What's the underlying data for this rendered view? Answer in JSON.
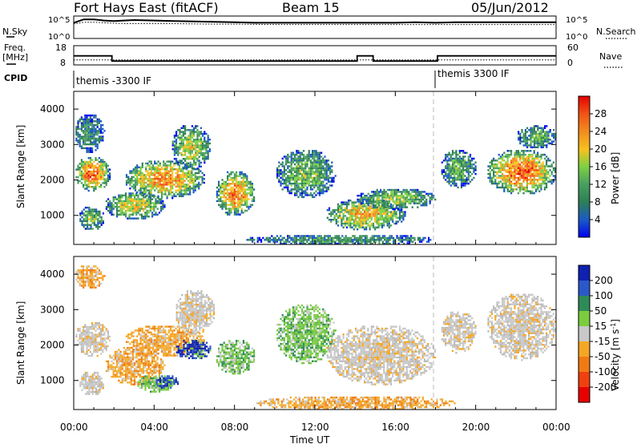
{
  "header": {
    "station": "Fort Hays East (fitACF)",
    "beam": "Beam 15",
    "date": "05/Jun/2012"
  },
  "noise_panel": {
    "left_label": "N.Sky",
    "right_label": "N.Search",
    "left_ticks": [
      "10^5",
      "10^0"
    ],
    "right_ticks": [
      "10^5",
      "10^0"
    ]
  },
  "freq_panel": {
    "left_label_1": "Freq.",
    "left_label_2": "[MHz]",
    "right_label": "Nave",
    "left_ticks": [
      "18",
      "8"
    ],
    "right_ticks": [
      "60",
      "0"
    ]
  },
  "cpid": {
    "label": "CPID",
    "segments": [
      {
        "start_hour": 0,
        "text": "themis -3300 IF"
      },
      {
        "start_hour": 18,
        "text": "themis 3300 IF"
      }
    ]
  },
  "time_axis": {
    "title": "Time UT",
    "ticks": [
      "00:00",
      "04:00",
      "08:00",
      "12:00",
      "16:00",
      "20:00",
      "00:00"
    ],
    "range_hours": [
      0,
      24
    ]
  },
  "chart_data": [
    {
      "type": "line",
      "panel": "noise",
      "x_hours": [
        0,
        0.5,
        1,
        1.5,
        2,
        2.5,
        3,
        4,
        5,
        6,
        7,
        8,
        9,
        10,
        11,
        12,
        13,
        14,
        15,
        16,
        17,
        18,
        19,
        20,
        21,
        22,
        23,
        24
      ],
      "series": [
        {
          "name": "N.Sky",
          "style": "solid",
          "values": [
            0.7,
            0.85,
            0.85,
            0.8,
            0.78,
            0.8,
            0.82,
            0.8,
            0.78,
            0.76,
            0.74,
            0.72,
            0.7,
            0.7,
            0.7,
            0.7,
            0.7,
            0.7,
            0.7,
            0.7,
            0.72,
            0.7,
            0.72,
            0.72,
            0.72,
            0.72,
            0.72,
            0.72
          ]
        },
        {
          "name": "N.Search",
          "style": "dotted",
          "values": [
            0.65,
            0.72,
            0.72,
            0.7,
            0.68,
            0.66,
            0.66,
            0.66,
            0.66,
            0.65,
            0.64,
            0.64,
            0.63,
            0.62,
            0.62,
            0.62,
            0.62,
            0.62,
            0.62,
            0.62,
            0.62,
            0.62,
            0.62,
            0.62,
            0.62,
            0.62,
            0.62,
            0.62
          ]
        }
      ]
    },
    {
      "type": "line",
      "panel": "frequency",
      "x_hours": [
        0,
        1.9,
        1.9,
        14.1,
        14.1,
        14.9,
        14.9,
        18.1,
        18.1,
        24
      ],
      "series": [
        {
          "name": "Freq.",
          "style": "solid",
          "values": [
            12.7,
            12.7,
            10.0,
            10.0,
            12.7,
            12.7,
            10.0,
            10.0,
            12.7,
            12.7
          ]
        },
        {
          "name": "Nave",
          "style": "dotted",
          "values": [
            10.6,
            10.6,
            10.6,
            10.6,
            10.6,
            10.6,
            10.6,
            10.6,
            10.6,
            10.6
          ]
        }
      ]
    },
    {
      "type": "heatmap",
      "panel": "power",
      "ylabel": "Slant Range [km]",
      "ylim": [
        180,
        4500
      ],
      "yticks": [
        1000,
        2000,
        3000,
        4000
      ],
      "colorbar": {
        "title": "Power [dB]",
        "range": [
          0,
          32
        ],
        "ticks": [
          "4",
          "8",
          "12",
          "16",
          "20",
          "24",
          "28"
        ],
        "colors": [
          "#0000f0",
          "#1a58c8",
          "#2d7f55",
          "#4aa060",
          "#7dd042",
          "#f6c21e",
          "#f28c1e",
          "#f05014",
          "#e60000"
        ]
      },
      "echo_regions": [
        {
          "t0": 0.0,
          "t1": 1.8,
          "r0": 1700,
          "r1": 2700,
          "intensity": 0.85
        },
        {
          "t0": 0.0,
          "t1": 1.5,
          "r0": 2800,
          "r1": 3900,
          "intensity": 0.3
        },
        {
          "t0": 0.2,
          "t1": 1.5,
          "r0": 600,
          "r1": 1300,
          "intensity": 0.45
        },
        {
          "t0": 1.5,
          "t1": 4.5,
          "r0": 900,
          "r1": 1700,
          "intensity": 0.6
        },
        {
          "t0": 2.5,
          "t1": 6.5,
          "r0": 1500,
          "r1": 2600,
          "intensity": 0.75
        },
        {
          "t0": 4.8,
          "t1": 6.8,
          "r0": 2300,
          "r1": 3600,
          "intensity": 0.55
        },
        {
          "t0": 7.0,
          "t1": 9.0,
          "r0": 1000,
          "r1": 2300,
          "intensity": 0.8
        },
        {
          "t0": 10.0,
          "t1": 13.0,
          "r0": 1500,
          "r1": 2900,
          "intensity": 0.45
        },
        {
          "t0": 12.5,
          "t1": 16.5,
          "r0": 600,
          "r1": 1500,
          "intensity": 0.7
        },
        {
          "t0": 14.0,
          "t1": 18.0,
          "r0": 1200,
          "r1": 1800,
          "intensity": 0.5
        },
        {
          "t0": 18.2,
          "t1": 20.0,
          "r0": 1800,
          "r1": 2900,
          "intensity": 0.4
        },
        {
          "t0": 20.5,
          "t1": 24.0,
          "r0": 1600,
          "r1": 2900,
          "intensity": 0.85
        },
        {
          "t0": 22.0,
          "t1": 24.0,
          "r0": 2900,
          "r1": 3600,
          "intensity": 0.4
        },
        {
          "t0": 8.5,
          "t1": 18.0,
          "r0": 180,
          "r1": 500,
          "intensity": 0.35
        }
      ]
    },
    {
      "type": "heatmap",
      "panel": "velocity",
      "ylabel": "Slant Range [km]",
      "ylim": [
        180,
        4500
      ],
      "yticks": [
        1000,
        2000,
        3000,
        4000
      ],
      "colorbar": {
        "title": "Velocity [m s^-1]",
        "ticks": [
          "200",
          "100",
          "50",
          "15",
          "-15",
          "-50",
          "-100",
          "-200"
        ],
        "colors": [
          "#1020b0",
          "#2b58c9",
          "#2e8b57",
          "#7ccc40",
          "#c8c8c8",
          "#f5a623",
          "#f07b14",
          "#f04010",
          "#e60000"
        ]
      },
      "echo_regions": [
        {
          "t0": 0.0,
          "t1": 1.8,
          "r0": 1700,
          "r1": 2700,
          "kind": "grey"
        },
        {
          "t0": 0.0,
          "t1": 1.5,
          "r0": 3600,
          "r1": 4300,
          "kind": "orange"
        },
        {
          "t0": 0.2,
          "t1": 1.5,
          "r0": 600,
          "r1": 1300,
          "kind": "grey"
        },
        {
          "t0": 1.5,
          "t1": 4.5,
          "r0": 900,
          "r1": 2000,
          "kind": "orange"
        },
        {
          "t0": 2.5,
          "t1": 6.5,
          "r0": 1700,
          "r1": 2600,
          "kind": "orange"
        },
        {
          "t0": 3.0,
          "t1": 5.0,
          "r0": 700,
          "r1": 1200,
          "kind": "green"
        },
        {
          "t0": 4.0,
          "t1": 5.2,
          "r0": 800,
          "r1": 1200,
          "kind": "blue"
        },
        {
          "t0": 5.0,
          "t1": 6.8,
          "r0": 1600,
          "r1": 2200,
          "kind": "blue"
        },
        {
          "t0": 5.0,
          "t1": 7.0,
          "r0": 2300,
          "r1": 3600,
          "kind": "grey"
        },
        {
          "t0": 7.0,
          "t1": 9.0,
          "r0": 1200,
          "r1": 2200,
          "kind": "green"
        },
        {
          "t0": 10.0,
          "t1": 13.0,
          "r0": 1500,
          "r1": 3200,
          "kind": "green"
        },
        {
          "t0": 12.5,
          "t1": 18.0,
          "r0": 900,
          "r1": 2600,
          "kind": "grey"
        },
        {
          "t0": 18.2,
          "t1": 20.0,
          "r0": 1800,
          "r1": 3000,
          "kind": "grey"
        },
        {
          "t0": 20.5,
          "t1": 24.0,
          "r0": 1600,
          "r1": 3500,
          "kind": "grey"
        },
        {
          "t0": 9.0,
          "t1": 19.0,
          "r0": 180,
          "r1": 600,
          "kind": "orange"
        }
      ]
    }
  ]
}
